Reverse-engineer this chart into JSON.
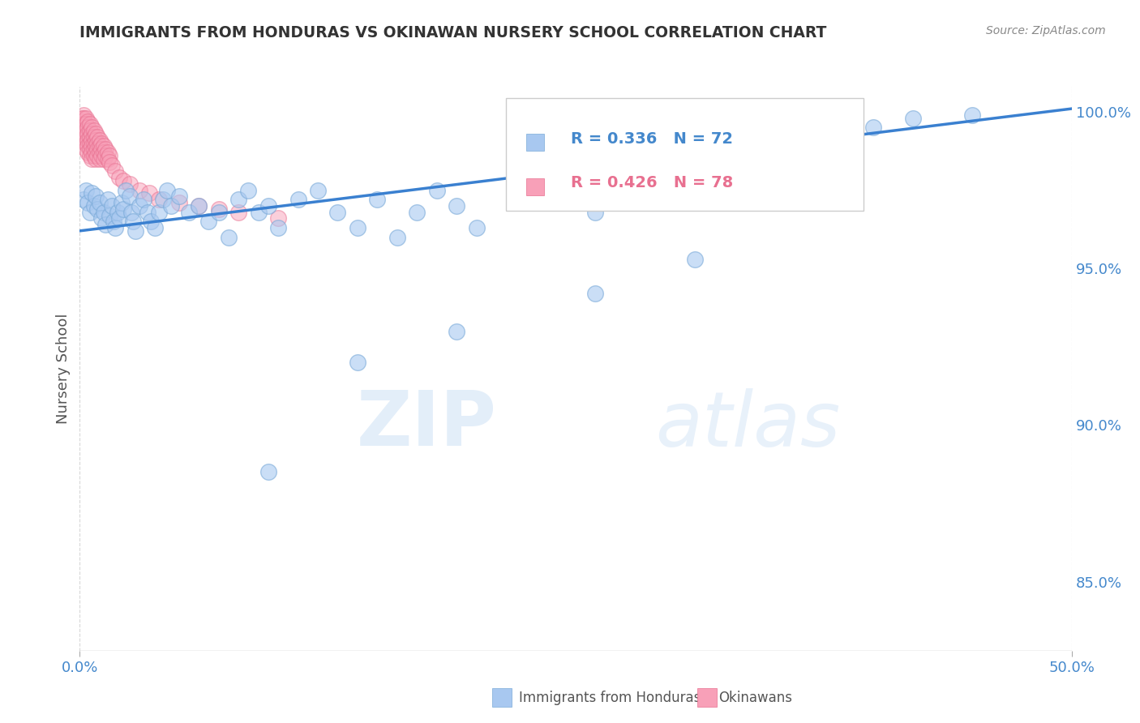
{
  "title": "IMMIGRANTS FROM HONDURAS VS OKINAWAN NURSERY SCHOOL CORRELATION CHART",
  "source": "Source: ZipAtlas.com",
  "ylabel": "Nursery School",
  "xlim": [
    0.0,
    0.5
  ],
  "ylim": [
    0.828,
    1.008
  ],
  "ytick_values": [
    0.85,
    0.9,
    0.95,
    1.0
  ],
  "legend_R1": "R = 0.336",
  "legend_N1": "N = 72",
  "legend_R2": "R = 0.426",
  "legend_N2": "N = 78",
  "blue_color": "#a8c8f0",
  "blue_edge": "#7aaad8",
  "pink_color": "#f8a0b8",
  "pink_edge": "#e87090",
  "trend_line_color": "#3a80d0",
  "trend_x": [
    0.0,
    0.5
  ],
  "trend_y": [
    0.962,
    1.001
  ],
  "grid_color": "#cccccc",
  "background_color": "#ffffff",
  "title_color": "#333333",
  "axis_label_color": "#4488cc",
  "ytick_color": "#4488cc",
  "xtick_color": "#4488cc",
  "blue_scatter_x": [
    0.002,
    0.003,
    0.004,
    0.005,
    0.006,
    0.007,
    0.008,
    0.009,
    0.01,
    0.011,
    0.012,
    0.013,
    0.014,
    0.015,
    0.016,
    0.017,
    0.018,
    0.019,
    0.02,
    0.021,
    0.022,
    0.023,
    0.025,
    0.026,
    0.027,
    0.028,
    0.03,
    0.032,
    0.034,
    0.036,
    0.038,
    0.04,
    0.042,
    0.044,
    0.046,
    0.05,
    0.055,
    0.06,
    0.065,
    0.07,
    0.075,
    0.08,
    0.085,
    0.09,
    0.095,
    0.1,
    0.11,
    0.12,
    0.13,
    0.14,
    0.15,
    0.16,
    0.17,
    0.18,
    0.19,
    0.2,
    0.22,
    0.24,
    0.26,
    0.28,
    0.3,
    0.32,
    0.35,
    0.38,
    0.4,
    0.42,
    0.45,
    0.31,
    0.26,
    0.19,
    0.14,
    0.095
  ],
  "blue_scatter_y": [
    0.972,
    0.975,
    0.971,
    0.968,
    0.974,
    0.97,
    0.973,
    0.969,
    0.971,
    0.966,
    0.968,
    0.964,
    0.972,
    0.967,
    0.97,
    0.965,
    0.963,
    0.968,
    0.966,
    0.971,
    0.969,
    0.975,
    0.973,
    0.968,
    0.965,
    0.962,
    0.97,
    0.972,
    0.968,
    0.965,
    0.963,
    0.968,
    0.972,
    0.975,
    0.97,
    0.973,
    0.968,
    0.97,
    0.965,
    0.968,
    0.96,
    0.972,
    0.975,
    0.968,
    0.97,
    0.963,
    0.972,
    0.975,
    0.968,
    0.963,
    0.972,
    0.96,
    0.968,
    0.975,
    0.97,
    0.963,
    0.972,
    0.975,
    0.968,
    0.98,
    0.982,
    0.985,
    0.99,
    0.993,
    0.995,
    0.998,
    0.999,
    0.953,
    0.942,
    0.93,
    0.92,
    0.885
  ],
  "pink_scatter_x": [
    0.001,
    0.001,
    0.001,
    0.001,
    0.001,
    0.002,
    0.002,
    0.002,
    0.002,
    0.002,
    0.002,
    0.003,
    0.003,
    0.003,
    0.003,
    0.003,
    0.003,
    0.004,
    0.004,
    0.004,
    0.004,
    0.004,
    0.004,
    0.005,
    0.005,
    0.005,
    0.005,
    0.005,
    0.005,
    0.006,
    0.006,
    0.006,
    0.006,
    0.006,
    0.006,
    0.007,
    0.007,
    0.007,
    0.007,
    0.007,
    0.008,
    0.008,
    0.008,
    0.008,
    0.008,
    0.009,
    0.009,
    0.009,
    0.009,
    0.01,
    0.01,
    0.01,
    0.01,
    0.011,
    0.011,
    0.011,
    0.012,
    0.012,
    0.012,
    0.013,
    0.013,
    0.014,
    0.014,
    0.015,
    0.015,
    0.016,
    0.018,
    0.02,
    0.022,
    0.025,
    0.03,
    0.035,
    0.04,
    0.05,
    0.06,
    0.07,
    0.08,
    0.1
  ],
  "pink_scatter_y": [
    0.998,
    0.997,
    0.996,
    0.994,
    0.993,
    0.999,
    0.998,
    0.996,
    0.995,
    0.993,
    0.991,
    0.998,
    0.996,
    0.994,
    0.992,
    0.99,
    0.988,
    0.997,
    0.995,
    0.993,
    0.991,
    0.989,
    0.987,
    0.996,
    0.994,
    0.992,
    0.99,
    0.988,
    0.986,
    0.995,
    0.993,
    0.991,
    0.989,
    0.987,
    0.985,
    0.994,
    0.992,
    0.99,
    0.988,
    0.986,
    0.993,
    0.991,
    0.989,
    0.987,
    0.985,
    0.992,
    0.99,
    0.988,
    0.986,
    0.991,
    0.989,
    0.987,
    0.985,
    0.99,
    0.988,
    0.986,
    0.989,
    0.987,
    0.985,
    0.988,
    0.986,
    0.987,
    0.985,
    0.986,
    0.984,
    0.983,
    0.981,
    0.979,
    0.978,
    0.977,
    0.975,
    0.974,
    0.972,
    0.971,
    0.97,
    0.969,
    0.968,
    0.966
  ]
}
